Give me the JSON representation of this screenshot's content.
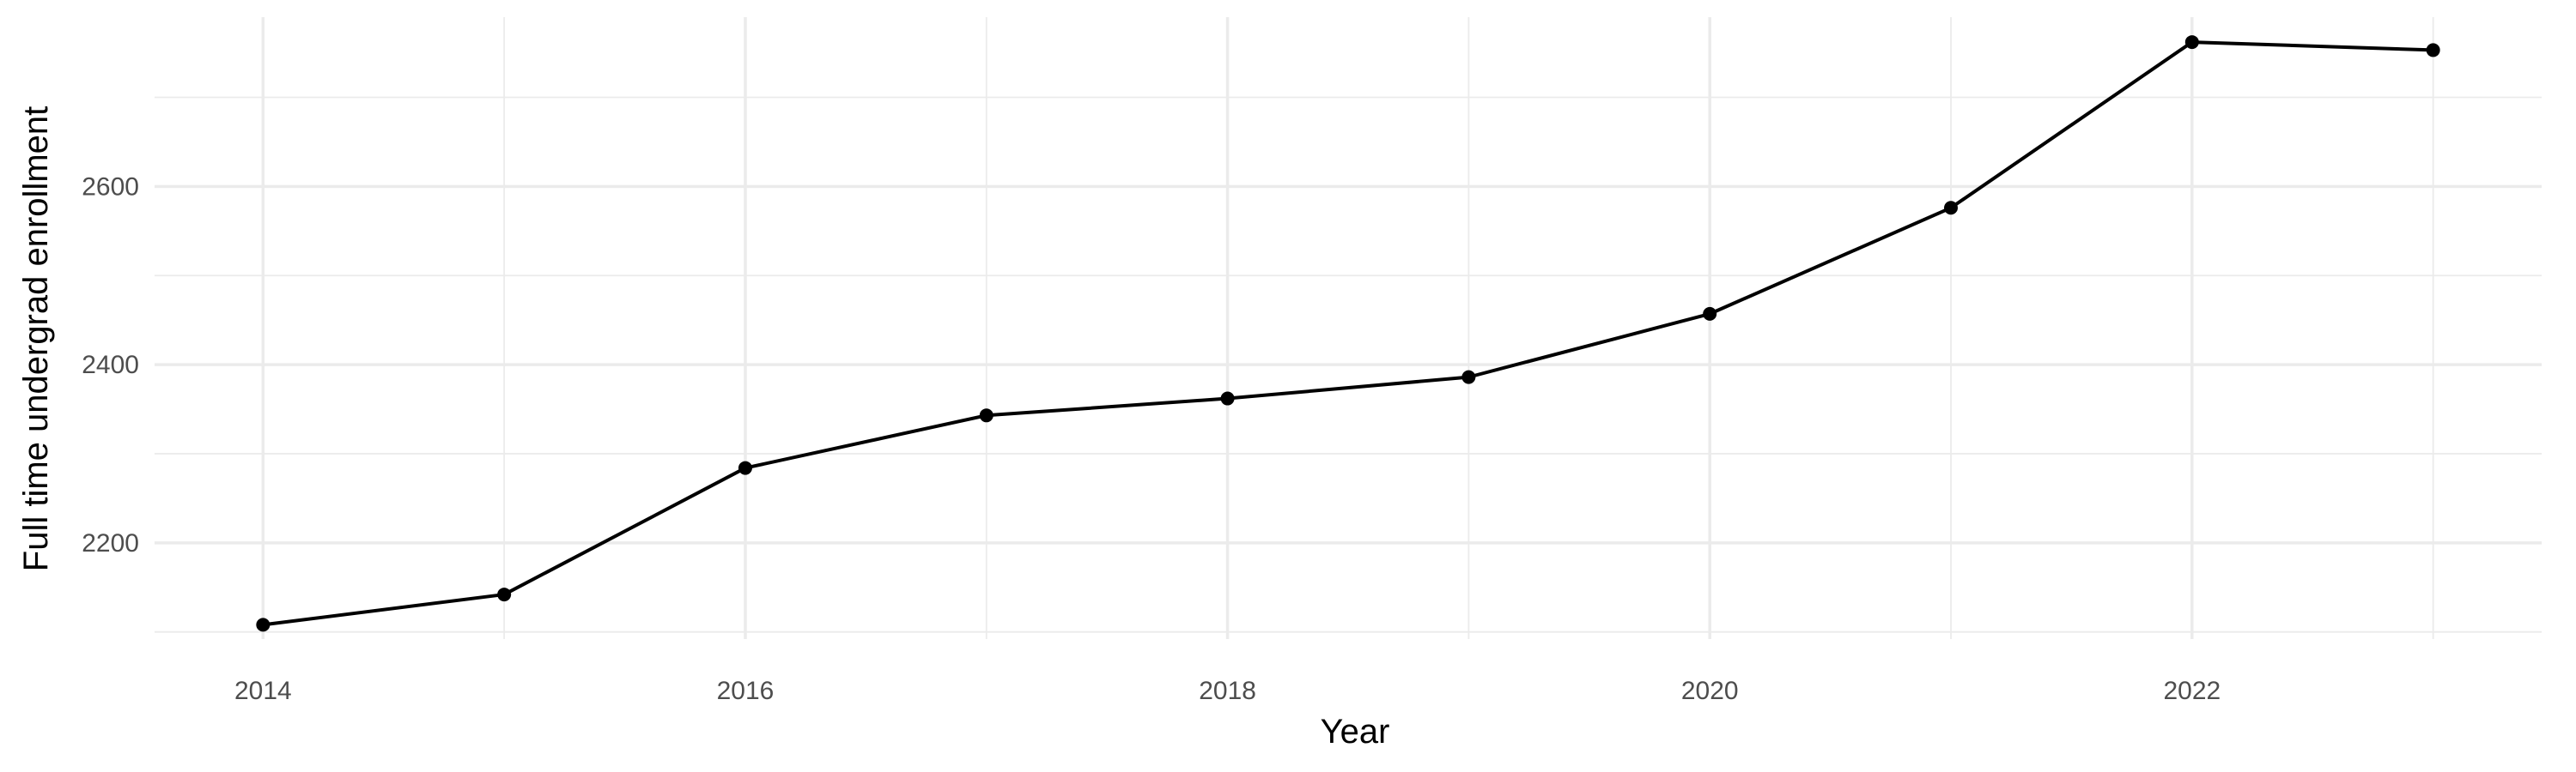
{
  "chart_data": {
    "type": "line",
    "xlabel": "Year",
    "ylabel": "Full time undergrad enrollment",
    "x": [
      2014,
      2015,
      2016,
      2017,
      2018,
      2019,
      2020,
      2021,
      2022,
      2023
    ],
    "series": [
      {
        "values": [
          2108,
          2142,
          2284,
          2343,
          2362,
          2386,
          2457,
          2576,
          2762,
          2753
        ]
      }
    ],
    "xlim": [
      2013.55,
      2023.45
    ],
    "ylim": [
      2092,
      2790
    ],
    "xticks": [
      2014,
      2016,
      2018,
      2020,
      2022
    ],
    "xticks_minor": [
      2015,
      2017,
      2019,
      2021,
      2023
    ],
    "yticks": [
      2200,
      2400,
      2600
    ],
    "yticks_minor": [
      2100,
      2300,
      2500,
      2700
    ],
    "grid": true,
    "legend": "none",
    "colors": {
      "line": "#000000",
      "grid": "#ebebeb",
      "tick_text": "#4d4d4d",
      "background": "#ffffff"
    }
  }
}
